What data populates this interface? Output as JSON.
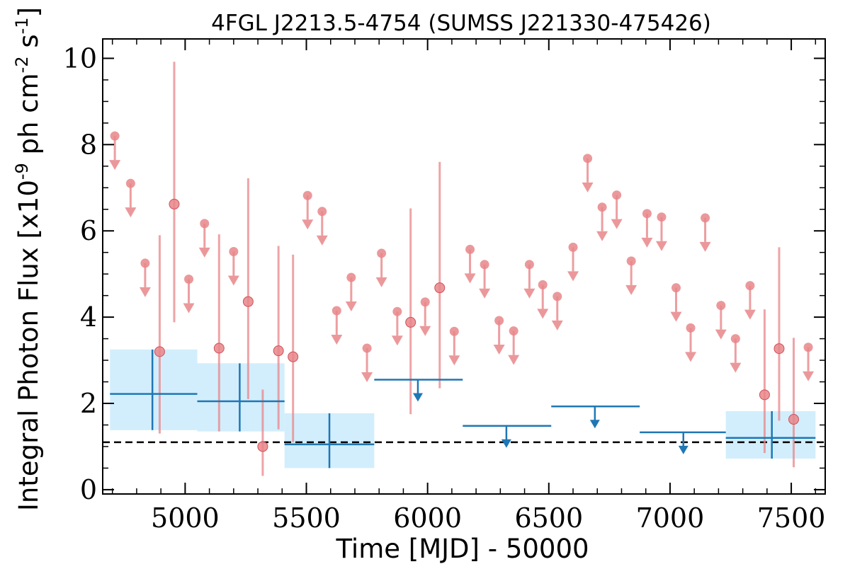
{
  "chart_data": {
    "type": "scatter",
    "title": "4FGL J2213.5-4754 (SUMSS J221330-475426)",
    "xlabel": "Time [MJD] - 50000",
    "ylabel": "Integral Photon Flux [x10^-9 ph cm^-2 s^-1]",
    "xlim": [
      4660,
      7640
    ],
    "ylim": [
      -0.1,
      10.45
    ],
    "xticks": [
      5000,
      5500,
      6000,
      6500,
      7000,
      7500
    ],
    "xtick_labels": [
      "5000",
      "5500",
      "6000",
      "6500",
      "7000",
      "7500"
    ],
    "yticks": [
      0,
      2,
      4,
      6,
      8,
      10
    ],
    "ytick_labels": [
      "0",
      "2",
      "4",
      "6",
      "8",
      "10"
    ],
    "grid": false,
    "legend": "none",
    "colors": {
      "short_bins": "#e8868a",
      "long_bins": "#1f77b4",
      "long_bins_band": "#d2eefc",
      "baseline": "#000000"
    },
    "baseline_flux": 1.1,
    "series": [
      {
        "bin_width": "short",
        "detections": [
          {
            "x": 4895,
            "y": 3.2,
            "ylo": 1.3,
            "yhi": 5.9
          },
          {
            "x": 4955,
            "y": 6.62,
            "ylo": 3.88,
            "yhi": 9.92
          },
          {
            "x": 5140,
            "y": 3.28,
            "ylo": 1.35,
            "yhi": 5.92
          },
          {
            "x": 5260,
            "y": 4.36,
            "ylo": 2.1,
            "yhi": 7.22
          },
          {
            "x": 5320,
            "y": 1.0,
            "ylo": 0.32,
            "yhi": 2.32
          },
          {
            "x": 5385,
            "y": 3.22,
            "ylo": 1.4,
            "yhi": 5.65
          },
          {
            "x": 5445,
            "y": 3.08,
            "ylo": 1.1,
            "yhi": 5.45
          },
          {
            "x": 5930,
            "y": 3.88,
            "ylo": 1.75,
            "yhi": 6.52
          },
          {
            "x": 6050,
            "y": 4.68,
            "ylo": 2.35,
            "yhi": 7.6
          },
          {
            "x": 7390,
            "y": 2.2,
            "ylo": 0.85,
            "yhi": 4.18
          },
          {
            "x": 7450,
            "y": 3.27,
            "ylo": 1.6,
            "yhi": 5.62
          },
          {
            "x": 7510,
            "y": 1.63,
            "ylo": 0.52,
            "yhi": 3.52
          }
        ],
        "upper_limits": [
          {
            "x": 4710,
            "y": 8.2
          },
          {
            "x": 4775,
            "y": 7.1
          },
          {
            "x": 4835,
            "y": 5.25
          },
          {
            "x": 5015,
            "y": 4.88
          },
          {
            "x": 5080,
            "y": 6.17
          },
          {
            "x": 5200,
            "y": 5.52
          },
          {
            "x": 5505,
            "y": 6.82
          },
          {
            "x": 5565,
            "y": 6.45
          },
          {
            "x": 5625,
            "y": 4.15
          },
          {
            "x": 5685,
            "y": 4.92
          },
          {
            "x": 5750,
            "y": 3.28
          },
          {
            "x": 5810,
            "y": 5.48
          },
          {
            "x": 5875,
            "y": 4.13
          },
          {
            "x": 5990,
            "y": 4.35
          },
          {
            "x": 6110,
            "y": 3.67
          },
          {
            "x": 6175,
            "y": 5.57
          },
          {
            "x": 6235,
            "y": 5.22
          },
          {
            "x": 6295,
            "y": 3.92
          },
          {
            "x": 6355,
            "y": 3.68
          },
          {
            "x": 6475,
            "y": 4.75
          },
          {
            "x": 6420,
            "y": 5.22
          },
          {
            "x": 6535,
            "y": 4.48
          },
          {
            "x": 6600,
            "y": 5.62
          },
          {
            "x": 6660,
            "y": 7.68
          },
          {
            "x": 6720,
            "y": 6.55
          },
          {
            "x": 6780,
            "y": 6.83
          },
          {
            "x": 6840,
            "y": 5.3
          },
          {
            "x": 6905,
            "y": 6.4
          },
          {
            "x": 6965,
            "y": 6.32
          },
          {
            "x": 7025,
            "y": 4.68
          },
          {
            "x": 7085,
            "y": 3.75
          },
          {
            "x": 7145,
            "y": 6.3
          },
          {
            "x": 7210,
            "y": 4.27
          },
          {
            "x": 7270,
            "y": 3.5
          },
          {
            "x": 7330,
            "y": 4.73
          },
          {
            "x": 7570,
            "y": 3.3
          }
        ]
      },
      {
        "bin_width": "long",
        "detections": [
          {
            "x": 5225,
            "y": 2.05,
            "xlo": 5050,
            "xhi": 5410,
            "ylo": 1.35,
            "yhi": 2.93
          },
          {
            "x": 5595,
            "y": 1.05,
            "xlo": 5410,
            "xhi": 5780,
            "ylo": 0.5,
            "yhi": 1.77
          },
          {
            "x": 7420,
            "y": 1.2,
            "xlo": 7230,
            "xhi": 7600,
            "ylo": 0.72,
            "yhi": 1.82
          }
        ],
        "upper_limits": [
          {
            "x": 5960,
            "y": 2.55,
            "xlo": 5780,
            "xhi": 6145
          },
          {
            "x": 6325,
            "y": 1.48,
            "xlo": 6145,
            "xhi": 6510
          },
          {
            "x": 6690,
            "y": 1.93,
            "xlo": 6510,
            "xhi": 6875
          },
          {
            "x": 7055,
            "y": 1.33,
            "xlo": 6875,
            "xhi": 7230
          }
        ]
      }
    ],
    "first_long_bin": {
      "x": 4865,
      "y": 2.22,
      "xlo": 4690,
      "xhi": 5050,
      "ylo": 1.38,
      "yhi": 3.25
    }
  }
}
